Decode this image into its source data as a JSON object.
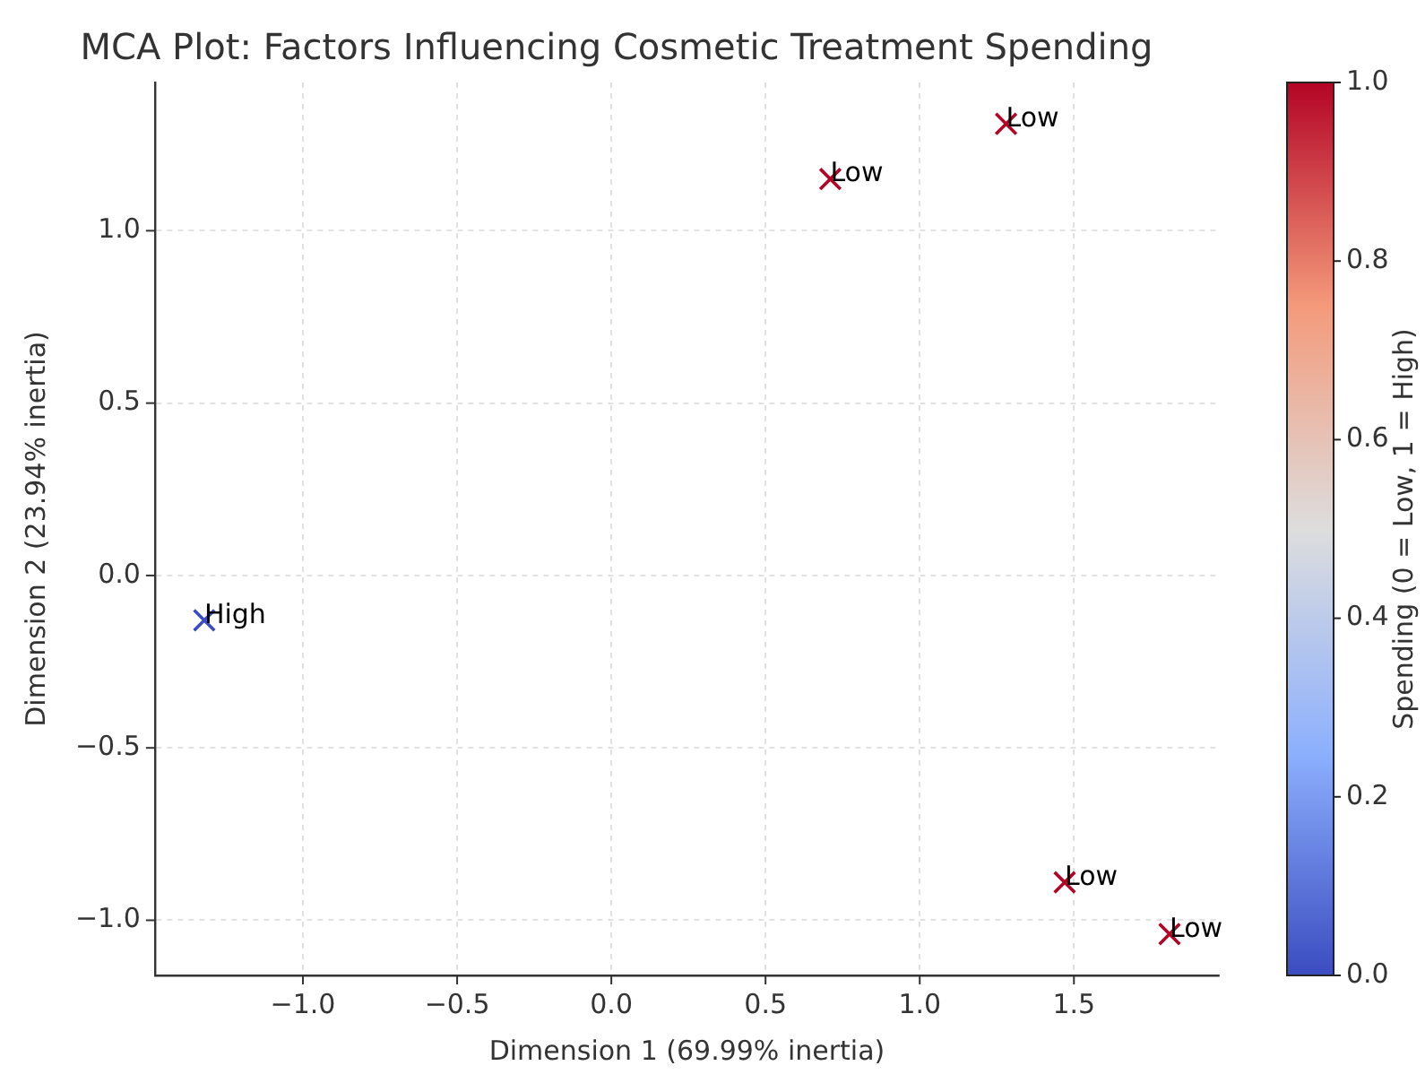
{
  "chart_data": {
    "type": "scatter",
    "title": "MCA Plot: Factors Influencing Cosmetic Treatment Spending",
    "xlabel": "Dimension 1 (69.99% inertia)",
    "ylabel": "Dimension 2 (23.94% inertia)",
    "clabel": "Spending (0 = Low, 1 = High)",
    "x": [
      -1.32,
      0.71,
      1.28,
      1.47,
      1.81
    ],
    "values": [
      -0.13,
      1.15,
      1.31,
      -0.89,
      -1.04
    ],
    "cvalues": [
      0,
      1,
      1,
      1,
      1
    ],
    "clim": [
      0,
      1
    ],
    "cticks": [
      {
        "value": 0,
        "label": "0.0"
      },
      0.2,
      0.4,
      0.6,
      0.8,
      {
        "value": 1,
        "label": "1.0"
      }
    ],
    "xlim": [
      -1.48,
      1.97
    ],
    "ylim": [
      -1.16,
      1.43
    ],
    "xticks": [
      {
        "value": -1,
        "label": "−1.0"
      },
      {
        "value": -0.5,
        "label": "−0.5"
      },
      {
        "value": 0,
        "label": "0.0"
      },
      {
        "value": 0.5,
        "label": "0.5"
      },
      {
        "value": 1,
        "label": "1.0"
      },
      {
        "value": 1.5,
        "label": "1.5"
      }
    ],
    "yticks": [
      {
        "value": -1,
        "label": "−1.0"
      },
      {
        "value": -0.5,
        "label": "−0.5"
      },
      {
        "value": 0,
        "label": "0.0"
      },
      {
        "value": 0.5,
        "label": "0.5"
      },
      {
        "value": 1,
        "label": "1.0"
      }
    ],
    "annotations": [
      {
        "text": "High",
        "x": -1.32,
        "y": -0.13
      },
      {
        "text": "Low",
        "x": 0.71,
        "y": 1.15
      },
      {
        "text": "Low",
        "x": 1.28,
        "y": 1.31
      },
      {
        "text": "Low",
        "x": 1.47,
        "y": -0.89
      },
      {
        "text": "Low",
        "x": 1.81,
        "y": -1.04
      }
    ],
    "marker": "cross",
    "grid": true,
    "legend": false
  }
}
